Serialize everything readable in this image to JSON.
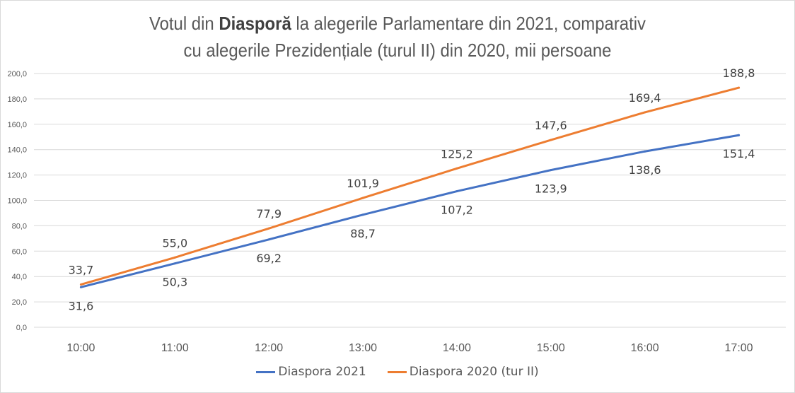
{
  "chart_data": {
    "type": "line",
    "title_parts": [
      "Votul din ",
      "Diasporă",
      " la alegerile Parlamentare din 2021, comparativ",
      "cu alegerile Prezidențiale (turul II) din 2020, mii persoane"
    ],
    "title": "Votul din Diasporă la alegerile Parlamentare din 2021, comparativ cu alegerile Prezidențiale (turul II) din 2020, mii persoane",
    "xlabel": "",
    "ylabel": "",
    "categories": [
      "10:00",
      "11:00",
      "12:00",
      "13:00",
      "14:00",
      "15:00",
      "16:00",
      "17:00"
    ],
    "ylim": [
      0,
      200
    ],
    "yticks": [
      0,
      20,
      40,
      60,
      80,
      100,
      120,
      140,
      160,
      180,
      200
    ],
    "ytick_labels": [
      "0,0",
      "20,0",
      "40,0",
      "60,0",
      "80,0",
      "100,0",
      "120,0",
      "140,0",
      "160,0",
      "180,0",
      "200,0"
    ],
    "grid": true,
    "legend_position": "bottom",
    "series": [
      {
        "name": "Diaspora 2021",
        "color": "#4472c4",
        "values": [
          31.6,
          50.3,
          69.2,
          88.7,
          107.2,
          123.9,
          138.6,
          151.4
        ],
        "labels": [
          "31,6",
          "50,3",
          "69,2",
          "88,7",
          "107,2",
          "123,9",
          "138,6",
          "151,4"
        ],
        "label_position": "below"
      },
      {
        "name": "Diaspora 2020 (tur II)",
        "color": "#ed7d31",
        "values": [
          33.7,
          55.0,
          77.9,
          101.9,
          125.2,
          147.6,
          169.4,
          188.8
        ],
        "labels": [
          "33,7",
          "55,0",
          "77,9",
          "101,9",
          "125,2",
          "147,6",
          "169,4",
          "188,8"
        ],
        "label_position": "above"
      }
    ]
  }
}
